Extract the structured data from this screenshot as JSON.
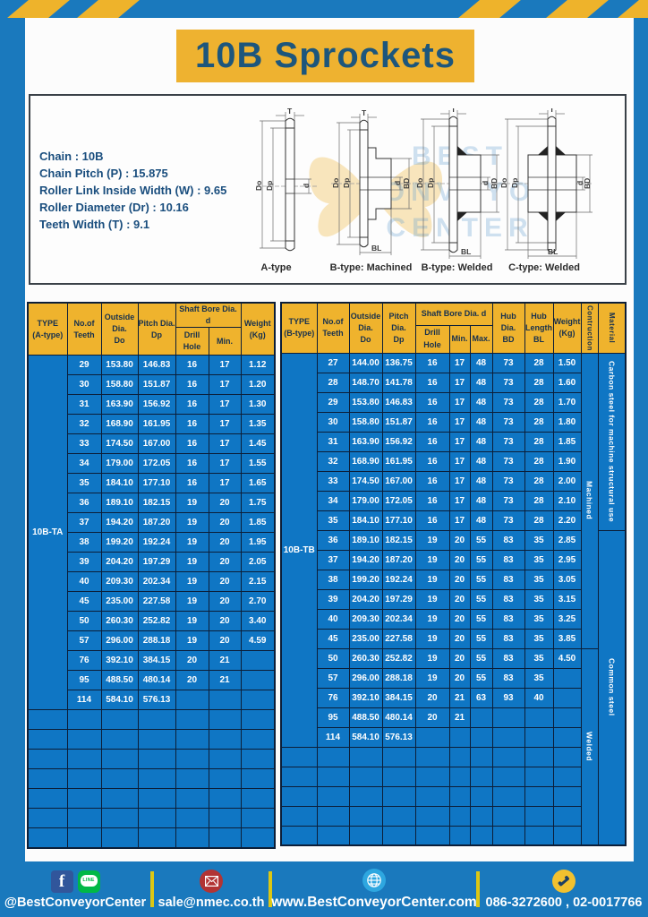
{
  "page": {
    "title": "10B Sprockets"
  },
  "specs": {
    "lines": [
      "Chain  :  10B",
      "Chain Pitch (P)  :  15.875",
      "Roller Link Inside Width (W) : 9.65",
      "Roller Diameter (Dr)  : 10.16",
      "Teeth Width (T)  :  9.1"
    ]
  },
  "dims": {
    "T": "T",
    "Do": "Do",
    "Dp": "Dp",
    "d": "d",
    "BD": "BD",
    "BL": "BL"
  },
  "diagrams": {
    "labels": [
      "A-type",
      "B-type: Machined",
      "B-type: Welded",
      "C-type: Welded"
    ]
  },
  "watermark": {
    "lines": [
      "BEST",
      "CONVEYOR",
      "CENTER"
    ]
  },
  "tables": {
    "left": {
      "h_type": "TYPE\n(A-type)",
      "h_teeth": "No.of\nTeeth",
      "h_outside": "Outside\nDia.\nDo",
      "h_pitch": "Pitch Dia.\nDp",
      "h_bore": "Shaft Bore Dia. d",
      "h_drill": "Drill Hole",
      "h_min": "Min.",
      "h_weight": "Weight\n(Kg)",
      "type_label": "10B-TA",
      "rows": [
        [
          "29",
          "153.80",
          "146.83",
          "16",
          "17",
          "1.12"
        ],
        [
          "30",
          "158.80",
          "151.87",
          "16",
          "17",
          "1.20"
        ],
        [
          "31",
          "163.90",
          "156.92",
          "16",
          "17",
          "1.30"
        ],
        [
          "32",
          "168.90",
          "161.95",
          "16",
          "17",
          "1.35"
        ],
        [
          "33",
          "174.50",
          "167.00",
          "16",
          "17",
          "1.45"
        ],
        [
          "34",
          "179.00",
          "172.05",
          "16",
          "17",
          "1.55"
        ],
        [
          "35",
          "184.10",
          "177.10",
          "16",
          "17",
          "1.65"
        ],
        [
          "36",
          "189.10",
          "182.15",
          "19",
          "20",
          "1.75"
        ],
        [
          "37",
          "194.20",
          "187.20",
          "19",
          "20",
          "1.85"
        ],
        [
          "38",
          "199.20",
          "192.24",
          "19",
          "20",
          "1.95"
        ],
        [
          "39",
          "204.20",
          "197.29",
          "19",
          "20",
          "2.05"
        ],
        [
          "40",
          "209.30",
          "202.34",
          "19",
          "20",
          "2.15"
        ],
        [
          "45",
          "235.00",
          "227.58",
          "19",
          "20",
          "2.70"
        ],
        [
          "50",
          "260.30",
          "252.82",
          "19",
          "20",
          "3.40"
        ],
        [
          "57",
          "296.00",
          "288.18",
          "19",
          "20",
          "4.59"
        ],
        [
          "76",
          "392.10",
          "384.15",
          "20",
          "21",
          ""
        ],
        [
          "95",
          "488.50",
          "480.14",
          "20",
          "21",
          ""
        ],
        [
          "114",
          "584.10",
          "576.13",
          "",
          "",
          ""
        ]
      ],
      "empty_rows": 7
    },
    "right": {
      "h_type": "TYPE\n(B-type)",
      "h_teeth": "No.of\nTeeth",
      "h_outside": "Outside\nDia.\nDo",
      "h_pitch": "Pitch Dia.\nDp",
      "h_bore": "Shaft Bore Dia. d",
      "h_drill": "Drill Hole",
      "h_min": "Min.",
      "h_max": "Max.",
      "h_hubdia": "Hub Dia.\nBD",
      "h_hublen": "Hub\nLength\nBL",
      "h_weight": "Weight\n(Kg)",
      "h_constr": "Contruction",
      "h_material": "Material",
      "type_label": "10B-TB",
      "rows": [
        [
          "27",
          "144.00",
          "136.75",
          "16",
          "17",
          "48",
          "73",
          "28",
          "1.50"
        ],
        [
          "28",
          "148.70",
          "141.78",
          "16",
          "17",
          "48",
          "73",
          "28",
          "1.60"
        ],
        [
          "29",
          "153.80",
          "146.83",
          "16",
          "17",
          "48",
          "73",
          "28",
          "1.70"
        ],
        [
          "30",
          "158.80",
          "151.87",
          "16",
          "17",
          "48",
          "73",
          "28",
          "1.80"
        ],
        [
          "31",
          "163.90",
          "156.92",
          "16",
          "17",
          "48",
          "73",
          "28",
          "1.85"
        ],
        [
          "32",
          "168.90",
          "161.95",
          "16",
          "17",
          "48",
          "73",
          "28",
          "1.90"
        ],
        [
          "33",
          "174.50",
          "167.00",
          "16",
          "17",
          "48",
          "73",
          "28",
          "2.00"
        ],
        [
          "34",
          "179.00",
          "172.05",
          "16",
          "17",
          "48",
          "73",
          "28",
          "2.10"
        ],
        [
          "35",
          "184.10",
          "177.10",
          "16",
          "17",
          "48",
          "73",
          "28",
          "2.20"
        ],
        [
          "36",
          "189.10",
          "182.15",
          "19",
          "20",
          "55",
          "83",
          "35",
          "2.85"
        ],
        [
          "37",
          "194.20",
          "187.20",
          "19",
          "20",
          "55",
          "83",
          "35",
          "2.95"
        ],
        [
          "38",
          "199.20",
          "192.24",
          "19",
          "20",
          "55",
          "83",
          "35",
          "3.05"
        ],
        [
          "39",
          "204.20",
          "197.29",
          "19",
          "20",
          "55",
          "83",
          "35",
          "3.15"
        ],
        [
          "40",
          "209.30",
          "202.34",
          "19",
          "20",
          "55",
          "83",
          "35",
          "3.25"
        ],
        [
          "45",
          "235.00",
          "227.58",
          "19",
          "20",
          "55",
          "83",
          "35",
          "3.85"
        ],
        [
          "50",
          "260.30",
          "252.82",
          "19",
          "20",
          "55",
          "83",
          "35",
          "4.50"
        ],
        [
          "57",
          "296.00",
          "288.18",
          "19",
          "20",
          "55",
          "83",
          "35",
          ""
        ],
        [
          "76",
          "392.10",
          "384.15",
          "20",
          "21",
          "63",
          "93",
          "40",
          ""
        ],
        [
          "95",
          "488.50",
          "480.14",
          "20",
          "21",
          "",
          "",
          "",
          ""
        ],
        [
          "114",
          "584.10",
          "576.13",
          "",
          "",
          "",
          "",
          "",
          ""
        ]
      ],
      "empty_rows": 5,
      "construction_cells": [
        {
          "label": "Machined",
          "span": 15
        },
        {
          "label": "Welded",
          "span": 10
        }
      ],
      "material_cells": [
        {
          "label": "Carbon steel for  machine structural use",
          "span": 9
        },
        {
          "label": "Common steel",
          "span": 16
        }
      ]
    }
  },
  "footer": {
    "social": "@BestConveyorCenter",
    "email": "sale@nmec.co.th",
    "website": "www.BestConveyorCenter.com",
    "phones": "086-3272600 , 02-0017766"
  },
  "colors": {
    "frame_blue": "#1a79bd",
    "table_blue": "#0f76c4",
    "accent_yellow": "#eeb32b",
    "title_navy": "#1d567c"
  }
}
